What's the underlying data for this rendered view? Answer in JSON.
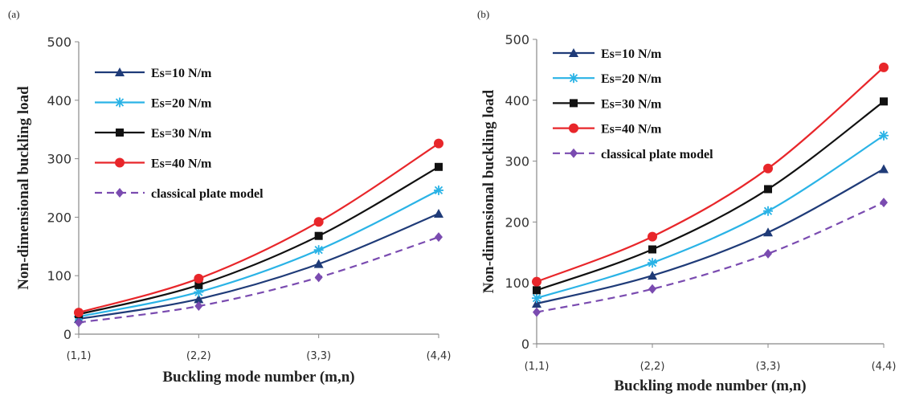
{
  "chart_data": [
    {
      "type": "line",
      "panel_label": "(a)",
      "categories": [
        "(1,1)",
        "(2,2)",
        "(3,3)",
        "(4,4)"
      ],
      "xlabel": "Buckling mode number (m,n)",
      "ylabel": "Non-dimensional buckling load",
      "ylim": [
        0,
        500
      ],
      "yticks": [
        "0",
        "100",
        "200",
        "300",
        "400",
        "500"
      ],
      "legend_position": "top-left",
      "series": [
        {
          "name": "Es=10 N/m",
          "color": "#1f3b78",
          "marker": "triangle",
          "dash": false,
          "values": [
            26,
            60,
            120,
            206
          ]
        },
        {
          "name": "Es=20 N/m",
          "color": "#2ab3e6",
          "marker": "asterisk",
          "dash": false,
          "values": [
            30,
            72,
            144,
            246
          ]
        },
        {
          "name": "Es=30 N/m",
          "color": "#111111",
          "marker": "square",
          "dash": false,
          "values": [
            34,
            84,
            168,
            286
          ]
        },
        {
          "name": "Es=40 N/m",
          "color": "#e8262a",
          "marker": "circle",
          "dash": false,
          "values": [
            37,
            95,
            192,
            326
          ]
        },
        {
          "name": "classical plate model",
          "color": "#7a4bb0",
          "marker": "diamond",
          "dash": true,
          "values": [
            20,
            48,
            97,
            166
          ]
        }
      ]
    },
    {
      "type": "line",
      "panel_label": "(b)",
      "categories": [
        "(1,1)",
        "(2,2)",
        "(3,3)",
        "(4,4)"
      ],
      "xlabel": "Buckling mode number (m,n)",
      "ylabel": "Non-dimensional buckling load",
      "ylim": [
        0,
        500
      ],
      "yticks": [
        "0",
        "100",
        "200",
        "300",
        "400",
        "500"
      ],
      "legend_position": "top-left",
      "series": [
        {
          "name": "Es=10 N/m",
          "color": "#1f3b78",
          "marker": "triangle",
          "dash": false,
          "values": [
            66,
            112,
            183,
            287
          ]
        },
        {
          "name": "Es=20 N/m",
          "color": "#2ab3e6",
          "marker": "asterisk",
          "dash": false,
          "values": [
            75,
            133,
            218,
            342
          ]
        },
        {
          "name": "Es=30 N/m",
          "color": "#111111",
          "marker": "square",
          "dash": false,
          "values": [
            88,
            155,
            254,
            398
          ]
        },
        {
          "name": "Es=40 N/m",
          "color": "#e8262a",
          "marker": "circle",
          "dash": false,
          "values": [
            102,
            176,
            288,
            454
          ]
        },
        {
          "name": "classical plate model",
          "color": "#7a4bb0",
          "marker": "diamond",
          "dash": true,
          "values": [
            52,
            90,
            148,
            232
          ]
        }
      ]
    }
  ]
}
